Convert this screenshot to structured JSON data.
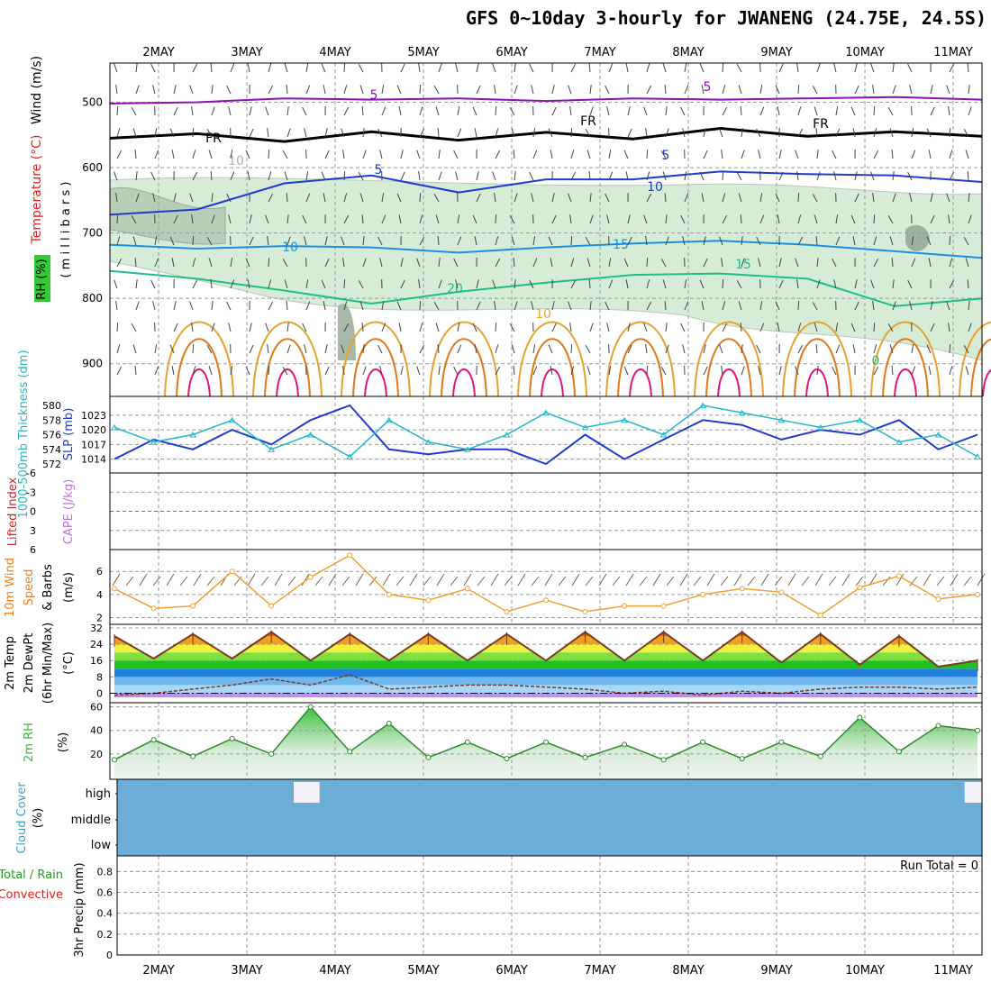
{
  "title": "GFS 0~10day 3-hourly for JWANENG (24.75E, 24.5S)",
  "x_axis": {
    "ticks": [
      "2MAY",
      "3MAY",
      "4MAY",
      "5MAY",
      "6MAY",
      "7MAY",
      "8MAY",
      "9MAY",
      "10MAY",
      "11MAY"
    ]
  },
  "colors": {
    "wind_purple": "#8a12b4",
    "fr_black": "#000000",
    "t5_blue": "#1e3ccc",
    "t10_cyan": "#1a90e0",
    "t15_green": "#1dbf80",
    "t20_orange": "#e8a030",
    "t25_orange": "#e07818",
    "t30_magenta": "#e0147a",
    "rh_green": "#d6ecd6",
    "slp_blue": "#1e3ccc",
    "thick_cyan": "#22b8c8",
    "wind10_orange": "#f0a030",
    "cloud_blue": "#6aaed8",
    "rh2_green": "#3cb43c"
  },
  "chart_data": [
    {
      "type": "line",
      "panel": "upper-air",
      "ylabel_parts": [
        "Wind (m/s)",
        "Temperature (°C)",
        "RH (%)"
      ],
      "ylabel_unit": "( m i l l i b a r s )",
      "ylim": [
        440,
        950
      ],
      "y_ticks": [
        500,
        600,
        700,
        800,
        900
      ],
      "contour_labels": [
        "5",
        "5",
        "FR",
        "FR",
        "FR",
        "10",
        "5",
        "5",
        "10",
        "10",
        "15",
        "15",
        "20",
        "10",
        "0"
      ],
      "series": [
        {
          "name": "5",
          "x": [
            0,
            1,
            2,
            3,
            4,
            5,
            6,
            7,
            8,
            9,
            10
          ],
          "values": [
            502,
            500,
            494,
            496,
            494,
            498,
            494,
            496,
            494,
            492,
            496
          ]
        },
        {
          "name": "FR",
          "x": [
            0,
            1,
            2,
            3,
            4,
            5,
            6,
            7,
            8,
            9,
            10
          ],
          "values": [
            555,
            548,
            560,
            545,
            558,
            546,
            556,
            540,
            552,
            545,
            552
          ]
        },
        {
          "name": "5",
          "x": [
            0,
            1,
            2,
            3,
            4,
            5,
            6,
            7,
            8,
            9,
            10
          ],
          "values": [
            672,
            664,
            624,
            612,
            638,
            618,
            618,
            606,
            610,
            612,
            622
          ]
        },
        {
          "name": "10",
          "x": [
            0,
            1,
            2,
            3,
            4,
            5,
            6,
            7,
            8,
            9,
            10
          ],
          "values": [
            718,
            724,
            720,
            722,
            730,
            722,
            716,
            712,
            718,
            728,
            738
          ]
        },
        {
          "name": "15",
          "x": [
            0,
            1,
            2,
            3,
            4,
            5,
            6,
            7,
            8,
            9,
            10
          ],
          "values": [
            758,
            770,
            788,
            808,
            790,
            776,
            764,
            762,
            770,
            812,
            800
          ]
        }
      ]
    },
    {
      "type": "line",
      "panel": "slp-thickness",
      "ylabel": "SLP (mb)",
      "ylabel2": "1000-500mb Thickness (dm)",
      "y_ticks_right": [
        1014,
        1017,
        1020,
        1023
      ],
      "y_ticks_left": [
        572,
        574,
        576,
        578,
        580
      ],
      "x": [
        0,
        0.5,
        1,
        1.5,
        2,
        2.5,
        3,
        3.5,
        4,
        4.5,
        5,
        5.5,
        6,
        6.5,
        7,
        7.5,
        8,
        8.5,
        9,
        9.5,
        10,
        10.5,
        11
      ],
      "series": [
        {
          "name": "SLP",
          "values": [
            1014,
            1018,
            1016,
            1020,
            1017,
            1022,
            1025,
            1016,
            1015,
            1016,
            1016,
            1013,
            1019,
            1014,
            1018,
            1022,
            1021,
            1018,
            1020,
            1019,
            1022,
            1016,
            1019
          ]
        },
        {
          "name": "Thickness",
          "values": [
            577,
            575,
            576,
            578,
            574,
            576,
            573,
            578,
            575,
            574,
            576,
            579,
            577,
            578,
            576,
            580,
            579,
            578,
            577,
            578,
            575,
            576,
            573
          ]
        }
      ]
    },
    {
      "type": "line",
      "panel": "stability",
      "ylabel": "Lifted Index",
      "ylabel2": "CAPE (J/kg)",
      "y_ticks": [
        "-6",
        "-3",
        "0",
        "3",
        "6"
      ],
      "ylim": [
        -6,
        6
      ],
      "series": [
        {
          "name": "Lifted Index",
          "x": [
            0,
            11
          ],
          "values": [
            0,
            0
          ]
        }
      ]
    },
    {
      "type": "line",
      "panel": "wind10m",
      "ylabel_parts": [
        "10m Wind",
        "Speed",
        "& Barbs",
        "(m/s)"
      ],
      "ylim": [
        1.8,
        7.5
      ],
      "y_ticks": [
        2,
        4,
        6
      ],
      "x": [
        0,
        0.5,
        1,
        1.5,
        2,
        2.5,
        3,
        3.5,
        4,
        4.5,
        5,
        5.5,
        6,
        6.5,
        7,
        7.5,
        8,
        8.5,
        9,
        9.5,
        10,
        10.5,
        11
      ],
      "series": [
        {
          "name": "10m Wind Speed",
          "values": [
            4.5,
            2.8,
            3.0,
            6.0,
            3.0,
            5.5,
            7.4,
            4.0,
            3.5,
            4.5,
            2.5,
            3.5,
            2.5,
            3.0,
            3.0,
            4.0,
            4.5,
            4.2,
            2.2,
            4.6,
            5.6,
            3.6,
            4.0
          ]
        }
      ]
    },
    {
      "type": "line",
      "panel": "temperature",
      "ylabel_parts": [
        "2m Temp",
        "2m DewPt",
        "(6hr Min/Max)",
        "(°C)"
      ],
      "ylim": [
        -2,
        32
      ],
      "y_ticks": [
        0,
        8,
        16,
        24,
        32
      ],
      "x": [
        0,
        0.5,
        1,
        1.5,
        2,
        2.5,
        3,
        3.5,
        4,
        4.5,
        5,
        5.5,
        6,
        6.5,
        7,
        7.5,
        8,
        8.5,
        9,
        9.5,
        10,
        10.5,
        11
      ],
      "series": [
        {
          "name": "2m Temp",
          "values": [
            28,
            17,
            29,
            17,
            30,
            16,
            29,
            16,
            29,
            16,
            29,
            16,
            30,
            16,
            30,
            16,
            30,
            15,
            29,
            14,
            28,
            13,
            16
          ]
        },
        {
          "name": "2m DewPt",
          "values": [
            -1,
            0,
            2,
            4,
            7,
            4,
            9,
            2,
            3,
            4,
            4,
            3,
            2,
            0,
            1,
            -1,
            1,
            0,
            2,
            3,
            3,
            2,
            3
          ]
        }
      ]
    },
    {
      "type": "area",
      "panel": "rh2m",
      "ylabel": "2m RH",
      "ylabel_unit": "(%)",
      "ylim": [
        0,
        62
      ],
      "y_ticks": [
        20,
        40,
        60
      ],
      "x": [
        0,
        0.5,
        1,
        1.5,
        2,
        2.5,
        3,
        3.5,
        4,
        4.5,
        5,
        5.5,
        6,
        6.5,
        7,
        7.5,
        8,
        8.5,
        9,
        9.5,
        10,
        10.5,
        11
      ],
      "series": [
        {
          "name": "2m RH",
          "values": [
            15,
            32,
            18,
            33,
            20,
            60,
            22,
            46,
            17,
            30,
            16,
            30,
            17,
            28,
            15,
            30,
            16,
            30,
            18,
            51,
            22,
            44,
            40
          ]
        }
      ]
    },
    {
      "type": "bar",
      "panel": "cloud",
      "ylabel": "Cloud Cover",
      "ylabel_unit": "(%)",
      "levels": [
        "high",
        "middle",
        "low"
      ],
      "series": [
        {
          "name": "high",
          "x": [
            2.4,
            2.5,
            10.95
          ],
          "values": [
            40,
            45,
            40
          ]
        }
      ]
    },
    {
      "type": "bar",
      "panel": "precip",
      "ylabel_parts": [
        "Total / Rain",
        "Convective",
        "3hr Precip (mm)"
      ],
      "ylim": [
        0,
        0.95
      ],
      "y_ticks": [
        "0",
        "0.2",
        "0.4",
        "0.6",
        "0.8"
      ],
      "annotation": "Run Total = 0",
      "series": []
    }
  ]
}
